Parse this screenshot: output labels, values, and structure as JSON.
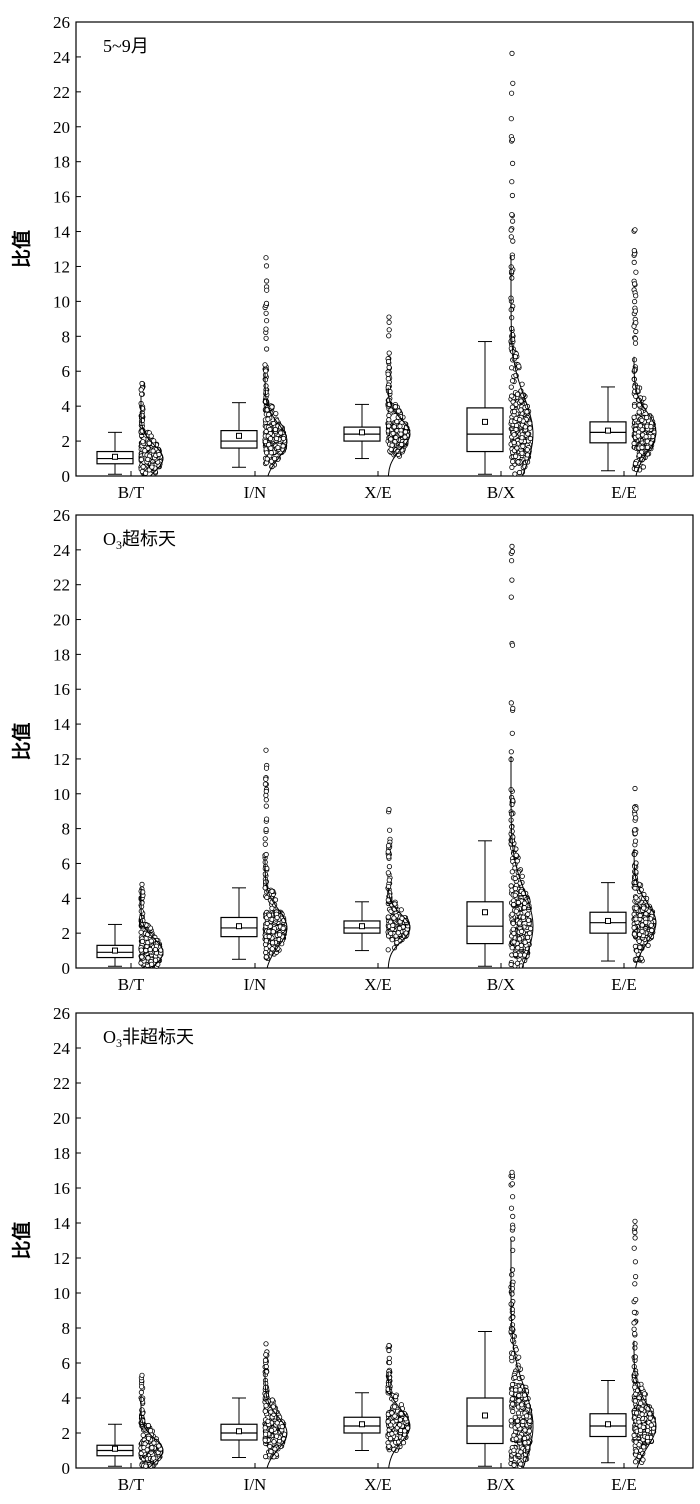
{
  "chart_data": [
    {
      "type": "box",
      "annotation": "5~9月",
      "ylabel": "比值",
      "ylim": [
        0,
        26
      ],
      "yticks": [
        "0",
        "2",
        "4",
        "6",
        "8",
        "10",
        "12",
        "14",
        "16",
        "18",
        "20",
        "22",
        "24",
        "26"
      ],
      "categories": [
        "B/T",
        "I/N",
        "X/E",
        "B/X",
        "E/E"
      ],
      "boxes": [
        {
          "whisker_low": 0.1,
          "q1": 0.7,
          "median": 1.0,
          "q3": 1.4,
          "whisker_high": 2.5,
          "mean": 1.1,
          "outlier_max": 5.3
        },
        {
          "whisker_low": 0.5,
          "q1": 1.6,
          "median": 2.0,
          "q3": 2.6,
          "whisker_high": 4.2,
          "mean": 2.3,
          "outlier_max": 12.5
        },
        {
          "whisker_low": 1.0,
          "q1": 2.0,
          "median": 2.4,
          "q3": 2.8,
          "whisker_high": 4.1,
          "mean": 2.5,
          "outlier_max": 9.1
        },
        {
          "whisker_low": 0.1,
          "q1": 1.4,
          "median": 2.4,
          "q3": 3.9,
          "whisker_high": 7.7,
          "mean": 3.1,
          "outlier_max": 24.2
        },
        {
          "whisker_low": 0.3,
          "q1": 1.9,
          "median": 2.5,
          "q3": 3.1,
          "whisker_high": 5.1,
          "mean": 2.6,
          "outlier_max": 14.1
        }
      ]
    },
    {
      "type": "box",
      "annotation": "O3超标天",
      "ylabel": "比值",
      "ylim": [
        0,
        26
      ],
      "yticks": [
        "0",
        "2",
        "4",
        "6",
        "8",
        "10",
        "12",
        "14",
        "16",
        "18",
        "20",
        "22",
        "24",
        "26"
      ],
      "categories": [
        "B/T",
        "I/N",
        "X/E",
        "B/X",
        "E/E"
      ],
      "boxes": [
        {
          "whisker_low": 0.1,
          "q1": 0.6,
          "median": 0.9,
          "q3": 1.3,
          "whisker_high": 2.5,
          "mean": 1.0,
          "outlier_max": 4.8
        },
        {
          "whisker_low": 0.5,
          "q1": 1.8,
          "median": 2.3,
          "q3": 2.9,
          "whisker_high": 4.6,
          "mean": 2.4,
          "outlier_max": 12.5
        },
        {
          "whisker_low": 1.0,
          "q1": 2.0,
          "median": 2.3,
          "q3": 2.7,
          "whisker_high": 3.8,
          "mean": 2.4,
          "outlier_max": 9.1
        },
        {
          "whisker_low": 0.1,
          "q1": 1.4,
          "median": 2.4,
          "q3": 3.8,
          "whisker_high": 7.3,
          "mean": 3.2,
          "outlier_max": 24.2
        },
        {
          "whisker_low": 0.4,
          "q1": 2.0,
          "median": 2.6,
          "q3": 3.2,
          "whisker_high": 4.9,
          "mean": 2.7,
          "outlier_max": 10.3
        }
      ]
    },
    {
      "type": "box",
      "annotation": "O3非超标天",
      "ylabel": "比值",
      "ylim": [
        0,
        26
      ],
      "yticks": [
        "0",
        "2",
        "4",
        "6",
        "8",
        "10",
        "12",
        "14",
        "16",
        "18",
        "20",
        "22",
        "24",
        "26"
      ],
      "categories": [
        "B/T",
        "I/N",
        "X/E",
        "B/X",
        "E/E"
      ],
      "boxes": [
        {
          "whisker_low": 0.1,
          "q1": 0.7,
          "median": 1.0,
          "q3": 1.3,
          "whisker_high": 2.5,
          "mean": 1.1,
          "outlier_max": 5.3
        },
        {
          "whisker_low": 0.6,
          "q1": 1.6,
          "median": 2.0,
          "q3": 2.5,
          "whisker_high": 4.0,
          "mean": 2.1,
          "outlier_max": 7.1
        },
        {
          "whisker_low": 1.0,
          "q1": 2.0,
          "median": 2.4,
          "q3": 2.9,
          "whisker_high": 4.3,
          "mean": 2.5,
          "outlier_max": 7.0
        },
        {
          "whisker_low": 0.1,
          "q1": 1.4,
          "median": 2.4,
          "q3": 4.0,
          "whisker_high": 7.8,
          "mean": 3.0,
          "outlier_max": 16.9
        },
        {
          "whisker_low": 0.3,
          "q1": 1.8,
          "median": 2.4,
          "q3": 3.1,
          "whisker_high": 5.0,
          "mean": 2.5,
          "outlier_max": 14.1
        }
      ]
    }
  ]
}
